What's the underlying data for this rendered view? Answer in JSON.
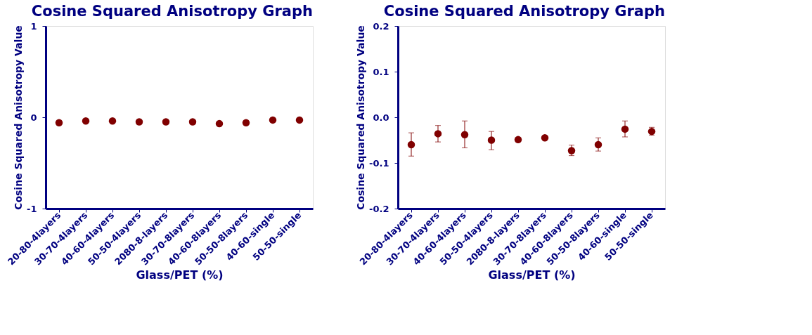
{
  "chart_data": [
    {
      "type": "scatter",
      "title": "Cosine Squared Anisotropy Graph",
      "xlabel": "Glass/PET (%)",
      "ylabel": "Cosine Squared Anisotropy Value",
      "categories": [
        "20-80-4layers",
        "30-70-4layers",
        "40-60-4layers",
        "50-50-4layers",
        "2080-8-layers",
        "30-70-8layers",
        "40-60-8layers",
        "50-50-8layers",
        "40-60-single",
        "50-50-single"
      ],
      "series": [
        {
          "color": "#800000",
          "values": [
            -0.06,
            -0.04,
            -0.04,
            -0.05,
            -0.05,
            -0.05,
            -0.07,
            -0.06,
            -0.03,
            -0.03
          ]
        }
      ],
      "ylim": [
        -1,
        1
      ],
      "yticks": [
        -1,
        0,
        1
      ],
      "grid": false,
      "marker": "circle"
    },
    {
      "type": "scatter",
      "title": "Cosine Squared Anisotropy Graph",
      "xlabel": "Glass/PET (%)",
      "ylabel": "Cosine Squared Anisotropy Value",
      "categories": [
        "20-80-4layers",
        "30-70-4layers",
        "40-60-4layers",
        "50-50-4layers",
        "2080-8-layers",
        "30-70-8layers",
        "40-60-8layers",
        "50-50-8layers",
        "40-60-single",
        "50-50-single"
      ],
      "series": [
        {
          "color": "#800000",
          "values": [
            -0.06,
            -0.036,
            -0.038,
            -0.05,
            -0.049,
            -0.045,
            -0.073,
            -0.06,
            -0.026,
            -0.031
          ],
          "errors": [
            [
              -0.085,
              -0.034
            ],
            [
              -0.054,
              -0.018
            ],
            [
              -0.067,
              -0.008
            ],
            [
              -0.071,
              -0.031
            ],
            null,
            null,
            [
              -0.084,
              -0.061
            ],
            [
              -0.074,
              -0.045
            ],
            [
              -0.043,
              -0.008
            ],
            [
              -0.039,
              -0.022
            ]
          ]
        }
      ],
      "ylim": [
        -0.2,
        0.2
      ],
      "yticks": [
        {
          "value": -0.2,
          "label": "-0.2"
        },
        {
          "value": -0.1,
          "label": "-0.1"
        },
        {
          "value": 0,
          "label": "0.0"
        },
        {
          "value": 0.1,
          "label": "0.1"
        },
        {
          "value": 0.2,
          "label": "0.2"
        }
      ],
      "grid": false,
      "marker": "circle"
    }
  ]
}
